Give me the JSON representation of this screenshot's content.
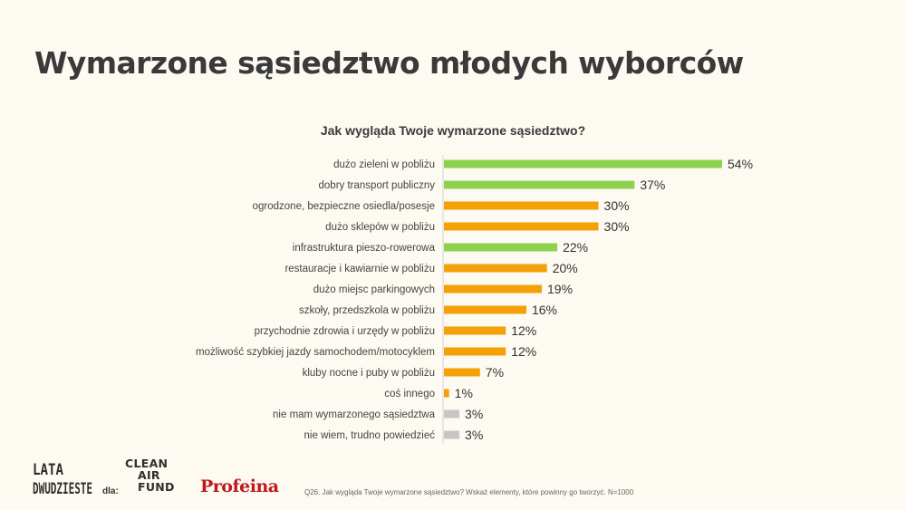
{
  "title": "Wymarzone sąsiedztwo młodych wyborców",
  "colors": {
    "green": "#8ed14f",
    "orange": "#f4a007",
    "gray": "#c6c6c6",
    "background": "#fdfaf1"
  },
  "chart_data": {
    "type": "bar",
    "orientation": "horizontal",
    "title": "Jak wygląda Twoje wymarzone sąsiedztwo?",
    "xlim": [
      0,
      54
    ],
    "grid": false,
    "categories": [
      "dużo zieleni w pobliżu",
      "dobry transport publiczny",
      "ogrodzone, bezpieczne osiedla/posesje",
      "dużo sklepów w pobliżu",
      "infrastruktura pieszo-rowerowa",
      "restauracje i kawiarnie w pobliżu",
      "dużo miejsc parkingowych",
      "szkoły, przedszkola w pobliżu",
      "przychodnie zdrowia i urzędy w pobliżu",
      "możliwość szybkiej jazdy samochodem/motocyklem",
      "kluby nocne i puby w pobliżu",
      "coś innego",
      "nie mam wymarzonego sąsiedztwa",
      "nie wiem, trudno powiedzieć"
    ],
    "values": [
      54,
      37,
      30,
      30,
      22,
      20,
      19,
      16,
      12,
      12,
      7,
      1,
      3,
      3
    ],
    "value_labels": [
      "54%",
      "37%",
      "30%",
      "30%",
      "22%",
      "20%",
      "19%",
      "16%",
      "12%",
      "12%",
      "7%",
      "1%",
      "3%",
      "3%"
    ],
    "bar_colors": [
      "green",
      "green",
      "orange",
      "orange",
      "green",
      "orange",
      "orange",
      "orange",
      "orange",
      "orange",
      "orange",
      "orange",
      "gray",
      "gray"
    ]
  },
  "logos": {
    "lata_dwudzieste": "LATA DWUDZIESTE",
    "dla": "dla:",
    "clean_air_fund": [
      "CLEAN",
      "AIR",
      "FUND"
    ],
    "profeina": "Profeina"
  },
  "footnote": "Q26. Jak wygląda Twoje wymarzone sąsiedztwo? Wskaż elementy, które powinny go tworzyć. N=1000"
}
